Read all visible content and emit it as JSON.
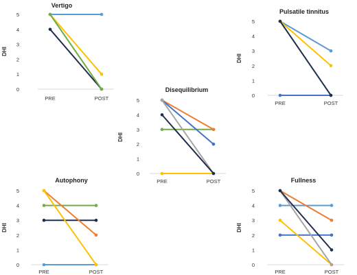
{
  "chart_data": [
    {
      "type": "line",
      "title": "Vertigo",
      "xlabel": "",
      "ylabel": "DHI",
      "categories": [
        "PRE",
        "POST"
      ],
      "yticks": [
        0,
        1,
        2,
        3,
        4,
        5
      ],
      "ylim": [
        0,
        5
      ],
      "grid": false,
      "series": [
        {
          "values": [
            5,
            5
          ],
          "color": "#5b9bd5"
        },
        {
          "values": [
            5,
            1
          ],
          "color": "#ffc000"
        },
        {
          "values": [
            4,
            0
          ],
          "color": "#1f2d4e"
        },
        {
          "values": [
            5,
            0
          ],
          "color": "#70ad47"
        }
      ]
    },
    {
      "type": "line",
      "title": "Pulsatile tinnitus",
      "xlabel": "",
      "ylabel": "DHI",
      "categories": [
        "PRE",
        "POST"
      ],
      "yticks": [
        0,
        1,
        2,
        3,
        4,
        5
      ],
      "ylim": [
        0,
        5
      ],
      "grid": false,
      "series": [
        {
          "values": [
            0,
            0
          ],
          "color": "#4472c4"
        },
        {
          "values": [
            5,
            3
          ],
          "color": "#5b9bd5"
        },
        {
          "values": [
            5,
            2
          ],
          "color": "#ffc000"
        },
        {
          "values": [
            5,
            0
          ],
          "color": "#1f2d4e"
        }
      ]
    },
    {
      "type": "line",
      "title": "Disequilibrium",
      "xlabel": "",
      "ylabel": "DHI",
      "categories": [
        "PRE",
        "POST"
      ],
      "yticks": [
        0,
        1,
        2,
        3,
        4,
        5
      ],
      "ylim": [
        0,
        5
      ],
      "grid": false,
      "series": [
        {
          "values": [
            0,
            0
          ],
          "color": "#ffc000"
        },
        {
          "values": [
            3,
            3
          ],
          "color": "#70ad47"
        },
        {
          "values": [
            5,
            3
          ],
          "color": "#ed7d31"
        },
        {
          "values": [
            5,
            2
          ],
          "color": "#4472c4"
        },
        {
          "values": [
            5,
            0
          ],
          "color": "#a5a5a5"
        },
        {
          "values": [
            4,
            0
          ],
          "color": "#1f2d4e"
        }
      ]
    },
    {
      "type": "line",
      "title": "Autophony",
      "xlabel": "",
      "ylabel": "DHI",
      "categories": [
        "PRE",
        "POST"
      ],
      "yticks": [
        0,
        1,
        2,
        3,
        4,
        5
      ],
      "ylim": [
        0,
        5
      ],
      "grid": false,
      "series": [
        {
          "values": [
            0,
            0
          ],
          "color": "#5b9bd5"
        },
        {
          "values": [
            4,
            4
          ],
          "color": "#70ad47"
        },
        {
          "values": [
            3,
            3
          ],
          "color": "#1f2d4e"
        },
        {
          "values": [
            5,
            2
          ],
          "color": "#ed7d31"
        },
        {
          "values": [
            5,
            0
          ],
          "color": "#ffc000"
        }
      ]
    },
    {
      "type": "line",
      "title": "Fullness",
      "xlabel": "",
      "ylabel": "DHI",
      "categories": [
        "PRE",
        "POST"
      ],
      "yticks": [
        0,
        1,
        2,
        3,
        4,
        5
      ],
      "ylim": [
        0,
        5
      ],
      "grid": false,
      "series": [
        {
          "values": [
            4,
            4
          ],
          "color": "#5b9bd5"
        },
        {
          "values": [
            2,
            2
          ],
          "color": "#4472c4"
        },
        {
          "values": [
            5,
            3
          ],
          "color": "#ed7d31"
        },
        {
          "values": [
            3,
            0
          ],
          "color": "#ffc000"
        },
        {
          "values": [
            5,
            0
          ],
          "color": "#a5a5a5"
        },
        {
          "values": [
            5,
            1
          ],
          "color": "#1f2d4e"
        }
      ]
    }
  ]
}
